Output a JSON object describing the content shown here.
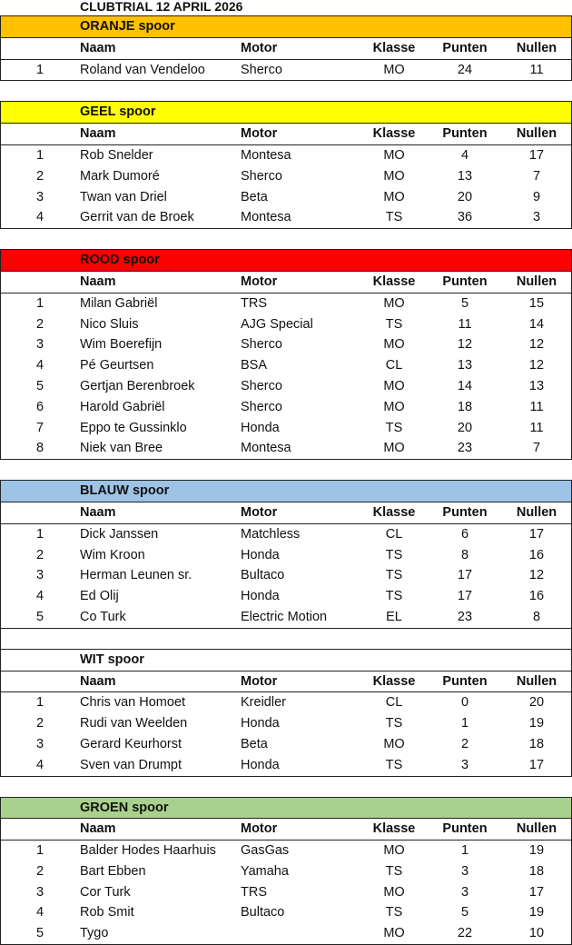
{
  "title": "CLUBTRIAL 12 APRIL 2026",
  "columns": {
    "naam": "Naam",
    "motor": "Motor",
    "klasse": "Klasse",
    "punten": "Punten",
    "nullen": "Nullen"
  },
  "tracks": [
    {
      "name": "ORANJE spoor",
      "color": "#FFC000",
      "rows": [
        [
          "1",
          "Roland van Vendeloo",
          "Sherco",
          "MO",
          "24",
          "11"
        ]
      ]
    },
    {
      "name": "GEEL spoor",
      "color": "#FFFF00",
      "rows": [
        [
          "1",
          "Rob Snelder",
          "Montesa",
          "MO",
          "4",
          "17"
        ],
        [
          "2",
          "Mark Dumoré",
          "Sherco",
          "MO",
          "13",
          "7"
        ],
        [
          "3",
          "Twan van Driel",
          "Beta",
          "MO",
          "20",
          "9"
        ],
        [
          "4",
          "Gerrit van de Broek",
          "Montesa",
          "TS",
          "36",
          "3"
        ]
      ]
    },
    {
      "name": "ROOD spoor",
      "color": "#FF0000",
      "rows": [
        [
          "1",
          "Milan Gabriël",
          "TRS",
          "MO",
          "5",
          "15"
        ],
        [
          "2",
          "Nico Sluis",
          "AJG Special",
          "TS",
          "11",
          "14"
        ],
        [
          "3",
          "Wim Boerefijn",
          "Sherco",
          "MO",
          "12",
          "12"
        ],
        [
          "4",
          "Pé Geurtsen",
          "BSA",
          "CL",
          "13",
          "12"
        ],
        [
          "5",
          "Gertjan Berenbroek",
          "Sherco",
          "MO",
          "14",
          "13"
        ],
        [
          "6",
          "Harold Gabriël",
          "Sherco",
          "MO",
          "18",
          "11"
        ],
        [
          "7",
          "Eppo te Gussinklo",
          "Honda",
          "TS",
          "20",
          "11"
        ],
        [
          "8",
          "Niek van Bree",
          "Montesa",
          "MO",
          "23",
          "7"
        ]
      ]
    },
    {
      "name": "BLAUW spoor",
      "color": "#9DC3E6",
      "rows": [
        [
          "1",
          "Dick Janssen",
          "Matchless",
          "CL",
          "6",
          "17"
        ],
        [
          "2",
          "Wim Kroon",
          "Honda",
          "TS",
          "8",
          "16"
        ],
        [
          "3",
          "Herman Leunen sr.",
          "Bultaco",
          "TS",
          "17",
          "12"
        ],
        [
          "4",
          "Ed Olij",
          "Honda",
          "TS",
          "17",
          "16"
        ],
        [
          "5",
          "Co Turk",
          "Electric Motion",
          "EL",
          "23",
          "8"
        ]
      ]
    },
    {
      "name": "WIT spoor",
      "color": "#FFFFFF",
      "rows": [
        [
          "1",
          "Chris van Homoet",
          "Kreidler",
          "CL",
          "0",
          "20"
        ],
        [
          "2",
          "Rudi van Weelden",
          "Honda",
          "TS",
          "1",
          "19"
        ],
        [
          "3",
          "Gerard Keurhorst",
          "Beta",
          "MO",
          "2",
          "18"
        ],
        [
          "4",
          "Sven van Drumpt",
          "Honda",
          "TS",
          "3",
          "17"
        ]
      ]
    },
    {
      "name": "GROEN spoor",
      "color": "#A9D18E",
      "rows": [
        [
          "1",
          "Balder Hodes Haarhuis",
          "GasGas",
          "MO",
          "1",
          "19"
        ],
        [
          "2",
          "Bart Ebben",
          "Yamaha",
          "TS",
          "3",
          "18"
        ],
        [
          "3",
          "Cor Turk",
          "TRS",
          "MO",
          "3",
          "17"
        ],
        [
          "4",
          "Rob Smit",
          "Bultaco",
          "TS",
          "5",
          "19"
        ],
        [
          "5",
          "Tygo",
          "",
          "MO",
          "22",
          "10"
        ]
      ]
    }
  ]
}
